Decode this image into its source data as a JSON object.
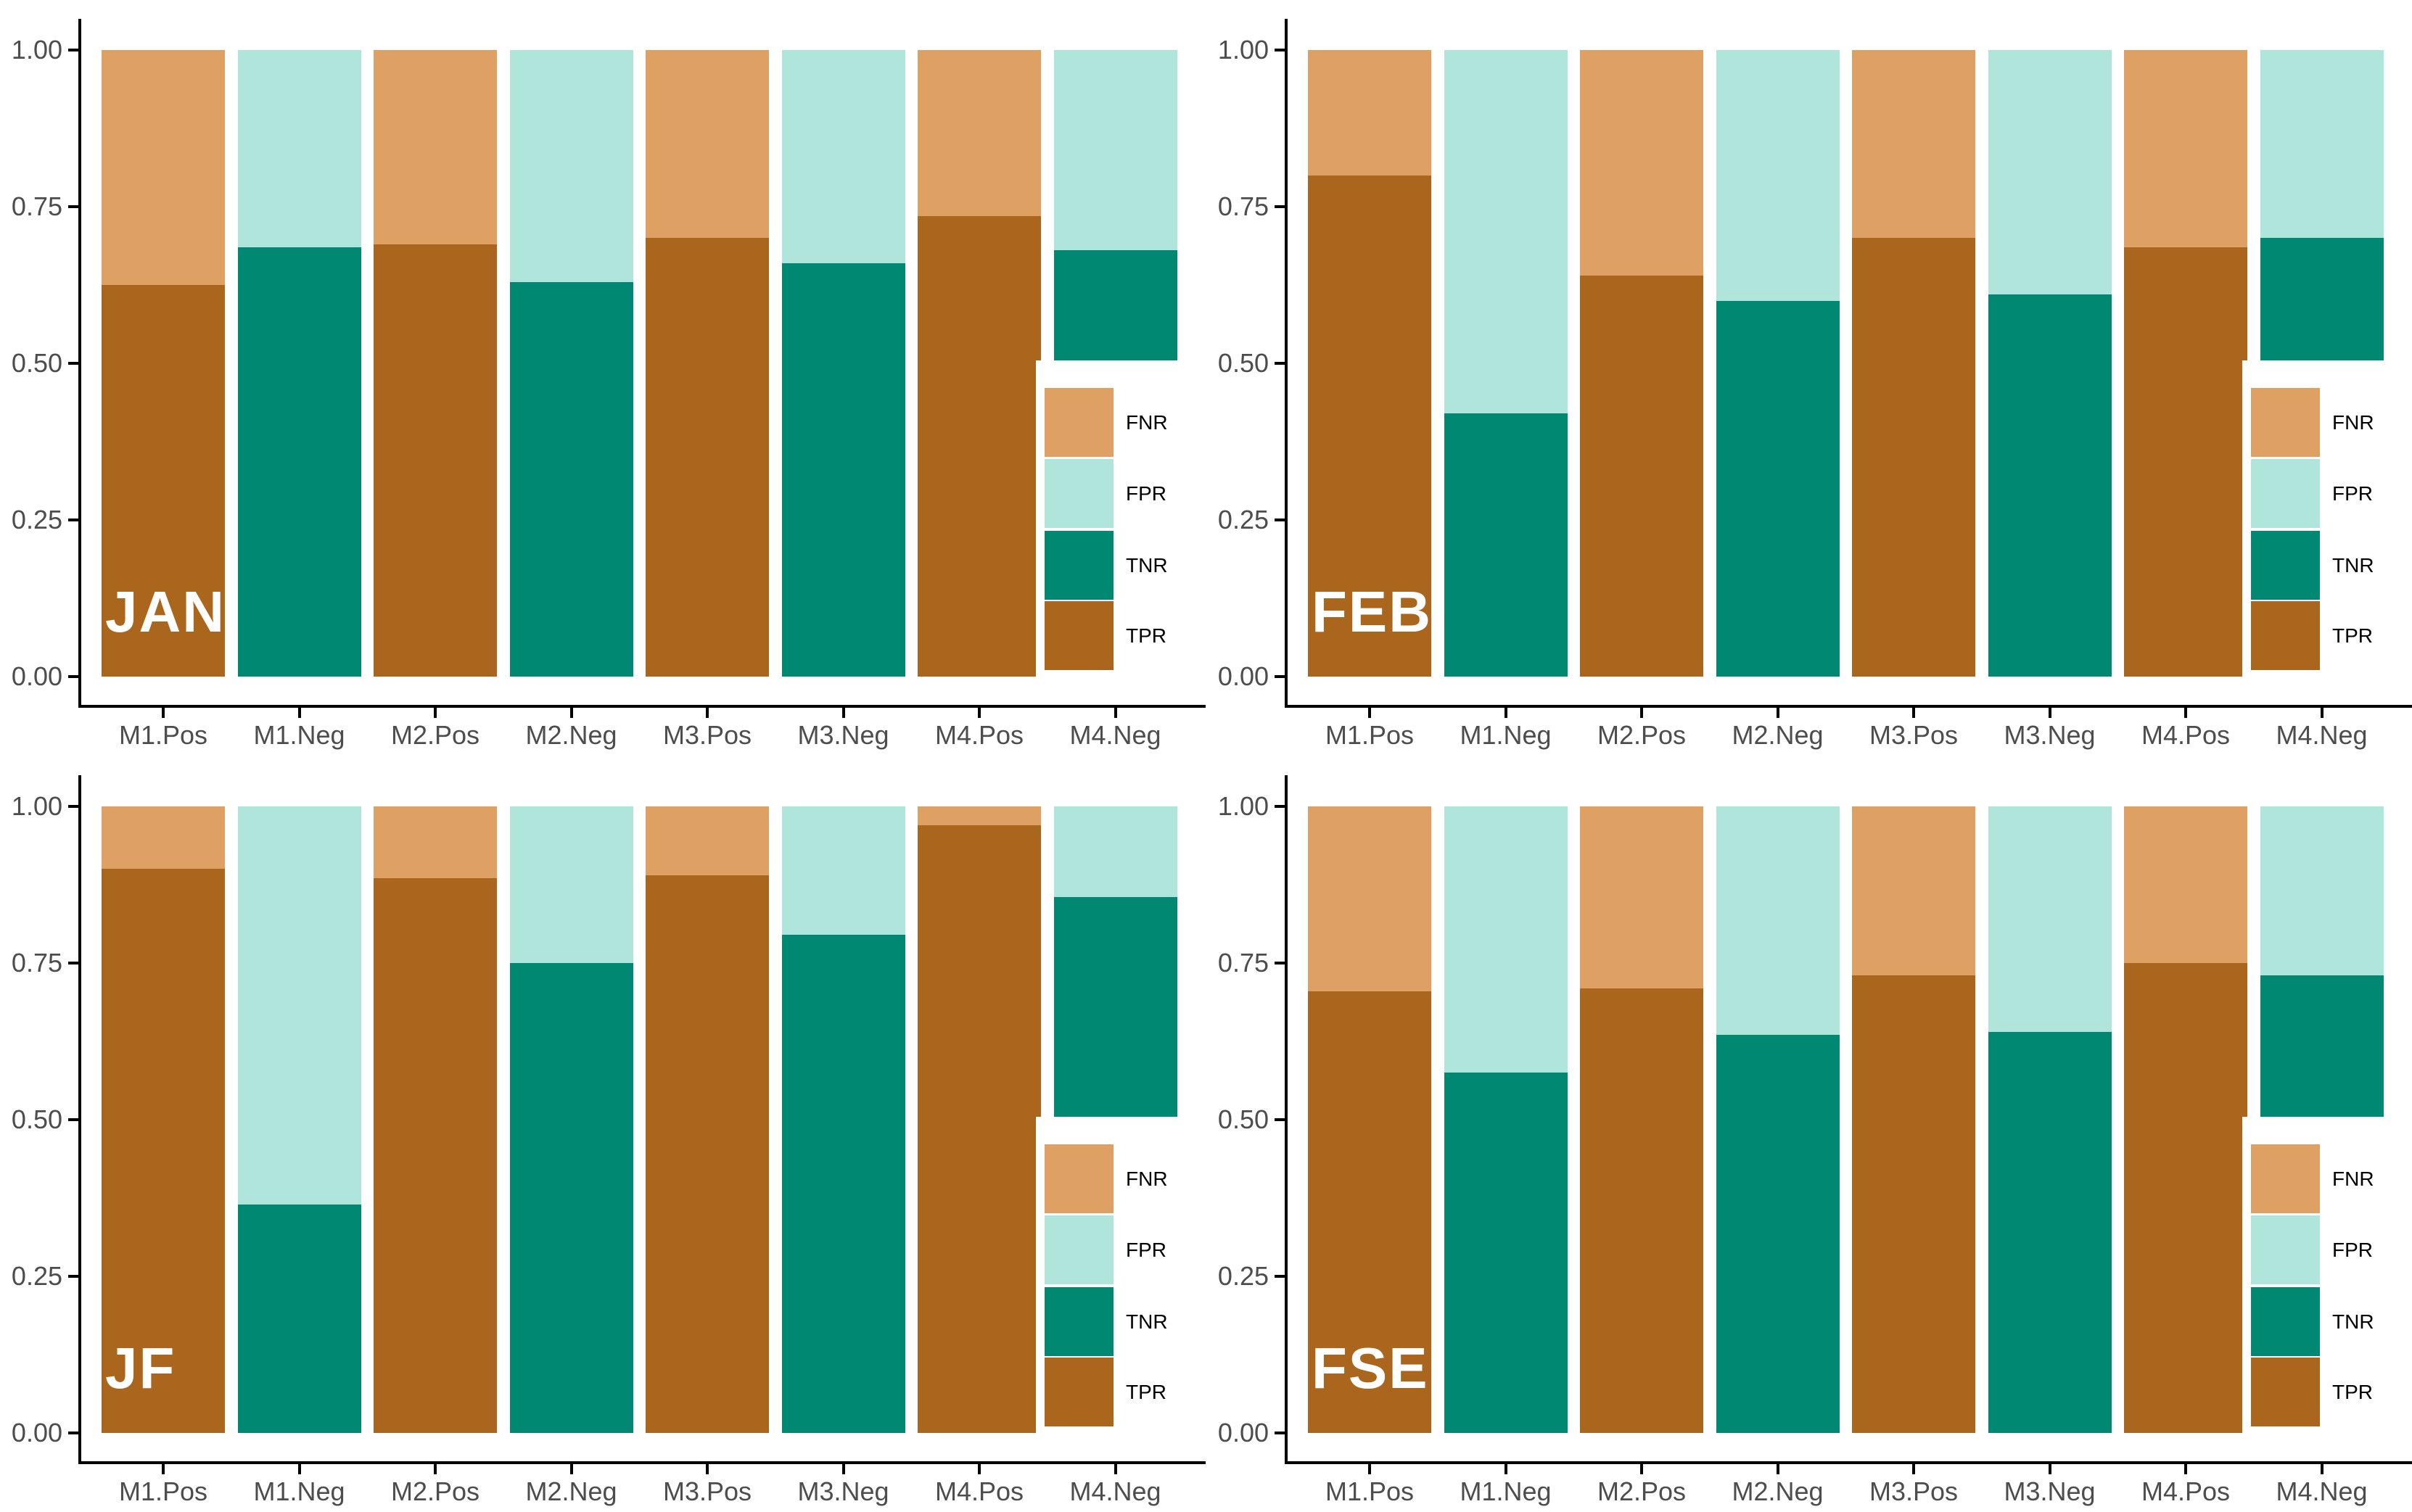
{
  "figure": {
    "background": "#FFFFFF",
    "layout": "2x2 grid of stacked bar chart panels"
  },
  "colors": {
    "FNR": "#DFA163",
    "FPR": "#AFE5DA",
    "TNR": "#008873",
    "TPR": "#AA661D",
    "axis": "#000000",
    "tick_text": "#4D4D4D",
    "panel_label_text": "#FFFFFF",
    "legend_text": "#000000"
  },
  "legend": {
    "labels": [
      "FNR",
      "FPR",
      "TNR",
      "TPR"
    ],
    "position": "inside bottom-right of each panel"
  },
  "chart_data": [
    {
      "type": "bar",
      "stacked": true,
      "panel_label": "JAN",
      "ylim": [
        0,
        1
      ],
      "yticks": [
        "1.00",
        "0.75",
        "0.50",
        "0.25",
        "0.00"
      ],
      "ytick_values": [
        1,
        0.75,
        0.5,
        0.25,
        0
      ],
      "grid": "off",
      "legend_entries": [
        "FNR",
        "FPR",
        "TNR",
        "TPR"
      ],
      "categories": [
        "M1.Pos",
        "M1.Neg",
        "M2.Pos",
        "M2.Neg",
        "M3.Pos",
        "M3.Neg",
        "M4.Pos",
        "M4.Neg"
      ],
      "bars": [
        {
          "category": "M1.Pos",
          "segments": [
            {
              "name": "TPR",
              "value": 0.625
            },
            {
              "name": "FNR",
              "value": 0.375
            }
          ]
        },
        {
          "category": "M1.Neg",
          "segments": [
            {
              "name": "TNR",
              "value": 0.685
            },
            {
              "name": "FPR",
              "value": 0.315
            }
          ]
        },
        {
          "category": "M2.Pos",
          "segments": [
            {
              "name": "TPR",
              "value": 0.69
            },
            {
              "name": "FNR",
              "value": 0.31
            }
          ]
        },
        {
          "category": "M2.Neg",
          "segments": [
            {
              "name": "TNR",
              "value": 0.63
            },
            {
              "name": "FPR",
              "value": 0.37
            }
          ]
        },
        {
          "category": "M3.Pos",
          "segments": [
            {
              "name": "TPR",
              "value": 0.7
            },
            {
              "name": "FNR",
              "value": 0.3
            }
          ]
        },
        {
          "category": "M3.Neg",
          "segments": [
            {
              "name": "TNR",
              "value": 0.66
            },
            {
              "name": "FPR",
              "value": 0.34
            }
          ]
        },
        {
          "category": "M4.Pos",
          "segments": [
            {
              "name": "TPR",
              "value": 0.735
            },
            {
              "name": "FNR",
              "value": 0.265
            }
          ]
        },
        {
          "category": "M4.Neg",
          "segments": [
            {
              "name": "TNR",
              "value": 0.68
            },
            {
              "name": "FPR",
              "value": 0.32
            }
          ]
        }
      ]
    },
    {
      "type": "bar",
      "stacked": true,
      "panel_label": "FEB",
      "ylim": [
        0,
        1
      ],
      "yticks": [
        "1.00",
        "0.75",
        "0.50",
        "0.25",
        "0.00"
      ],
      "ytick_values": [
        1,
        0.75,
        0.5,
        0.25,
        0
      ],
      "grid": "off",
      "legend_entries": [
        "FNR",
        "FPR",
        "TNR",
        "TPR"
      ],
      "categories": [
        "M1.Pos",
        "M1.Neg",
        "M2.Pos",
        "M2.Neg",
        "M3.Pos",
        "M3.Neg",
        "M4.Pos",
        "M4.Neg"
      ],
      "bars": [
        {
          "category": "M1.Pos",
          "segments": [
            {
              "name": "TPR",
              "value": 0.8
            },
            {
              "name": "FNR",
              "value": 0.2
            }
          ]
        },
        {
          "category": "M1.Neg",
          "segments": [
            {
              "name": "TNR",
              "value": 0.42
            },
            {
              "name": "FPR",
              "value": 0.58
            }
          ]
        },
        {
          "category": "M2.Pos",
          "segments": [
            {
              "name": "TPR",
              "value": 0.64
            },
            {
              "name": "FNR",
              "value": 0.36
            }
          ]
        },
        {
          "category": "M2.Neg",
          "segments": [
            {
              "name": "TNR",
              "value": 0.6
            },
            {
              "name": "FPR",
              "value": 0.4
            }
          ]
        },
        {
          "category": "M3.Pos",
          "segments": [
            {
              "name": "TPR",
              "value": 0.7
            },
            {
              "name": "FNR",
              "value": 0.3
            }
          ]
        },
        {
          "category": "M3.Neg",
          "segments": [
            {
              "name": "TNR",
              "value": 0.61
            },
            {
              "name": "FPR",
              "value": 0.39
            }
          ]
        },
        {
          "category": "M4.Pos",
          "segments": [
            {
              "name": "TPR",
              "value": 0.685
            },
            {
              "name": "FNR",
              "value": 0.315
            }
          ]
        },
        {
          "category": "M4.Neg",
          "segments": [
            {
              "name": "TNR",
              "value": 0.7
            },
            {
              "name": "FPR",
              "value": 0.3
            }
          ]
        }
      ]
    },
    {
      "type": "bar",
      "stacked": true,
      "panel_label": "JF",
      "ylim": [
        0,
        1
      ],
      "yticks": [
        "1.00",
        "0.75",
        "0.50",
        "0.25",
        "0.00"
      ],
      "ytick_values": [
        1,
        0.75,
        0.5,
        0.25,
        0
      ],
      "grid": "off",
      "legend_entries": [
        "FNR",
        "FPR",
        "TNR",
        "TPR"
      ],
      "categories": [
        "M1.Pos",
        "M1.Neg",
        "M2.Pos",
        "M2.Neg",
        "M3.Pos",
        "M3.Neg",
        "M4.Pos",
        "M4.Neg"
      ],
      "bars": [
        {
          "category": "M1.Pos",
          "segments": [
            {
              "name": "TPR",
              "value": 0.9
            },
            {
              "name": "FNR",
              "value": 0.1
            }
          ]
        },
        {
          "category": "M1.Neg",
          "segments": [
            {
              "name": "TNR",
              "value": 0.365
            },
            {
              "name": "FPR",
              "value": 0.635
            }
          ]
        },
        {
          "category": "M2.Pos",
          "segments": [
            {
              "name": "TPR",
              "value": 0.885
            },
            {
              "name": "FNR",
              "value": 0.115
            }
          ]
        },
        {
          "category": "M2.Neg",
          "segments": [
            {
              "name": "TNR",
              "value": 0.75
            },
            {
              "name": "FPR",
              "value": 0.25
            }
          ]
        },
        {
          "category": "M3.Pos",
          "segments": [
            {
              "name": "TPR",
              "value": 0.89
            },
            {
              "name": "FNR",
              "value": 0.11
            }
          ]
        },
        {
          "category": "M3.Neg",
          "segments": [
            {
              "name": "TNR",
              "value": 0.795
            },
            {
              "name": "FPR",
              "value": 0.205
            }
          ]
        },
        {
          "category": "M4.Pos",
          "segments": [
            {
              "name": "TPR",
              "value": 0.97
            },
            {
              "name": "FNR",
              "value": 0.03
            }
          ]
        },
        {
          "category": "M4.Neg",
          "segments": [
            {
              "name": "TNR",
              "value": 0.855
            },
            {
              "name": "FPR",
              "value": 0.145
            }
          ]
        }
      ]
    },
    {
      "type": "bar",
      "stacked": true,
      "panel_label": "FSE",
      "ylim": [
        0,
        1
      ],
      "yticks": [
        "1.00",
        "0.75",
        "0.50",
        "0.25",
        "0.00"
      ],
      "ytick_values": [
        1,
        0.75,
        0.5,
        0.25,
        0
      ],
      "grid": "off",
      "legend_entries": [
        "FNR",
        "FPR",
        "TNR",
        "TPR"
      ],
      "categories": [
        "M1.Pos",
        "M1.Neg",
        "M2.Pos",
        "M2.Neg",
        "M3.Pos",
        "M3.Neg",
        "M4.Pos",
        "M4.Neg"
      ],
      "bars": [
        {
          "category": "M1.Pos",
          "segments": [
            {
              "name": "TPR",
              "value": 0.705
            },
            {
              "name": "FNR",
              "value": 0.295
            }
          ]
        },
        {
          "category": "M1.Neg",
          "segments": [
            {
              "name": "TNR",
              "value": 0.575
            },
            {
              "name": "FPR",
              "value": 0.425
            }
          ]
        },
        {
          "category": "M2.Pos",
          "segments": [
            {
              "name": "TPR",
              "value": 0.71
            },
            {
              "name": "FNR",
              "value": 0.29
            }
          ]
        },
        {
          "category": "M2.Neg",
          "segments": [
            {
              "name": "TNR",
              "value": 0.635
            },
            {
              "name": "FPR",
              "value": 0.365
            }
          ]
        },
        {
          "category": "M3.Pos",
          "segments": [
            {
              "name": "TPR",
              "value": 0.73
            },
            {
              "name": "FNR",
              "value": 0.27
            }
          ]
        },
        {
          "category": "M3.Neg",
          "segments": [
            {
              "name": "TNR",
              "value": 0.64
            },
            {
              "name": "FPR",
              "value": 0.36
            }
          ]
        },
        {
          "category": "M4.Pos",
          "segments": [
            {
              "name": "TPR",
              "value": 0.75
            },
            {
              "name": "FNR",
              "value": 0.25
            }
          ]
        },
        {
          "category": "M4.Neg",
          "segments": [
            {
              "name": "TNR",
              "value": 0.73
            },
            {
              "name": "FPR",
              "value": 0.27
            }
          ]
        }
      ]
    }
  ]
}
